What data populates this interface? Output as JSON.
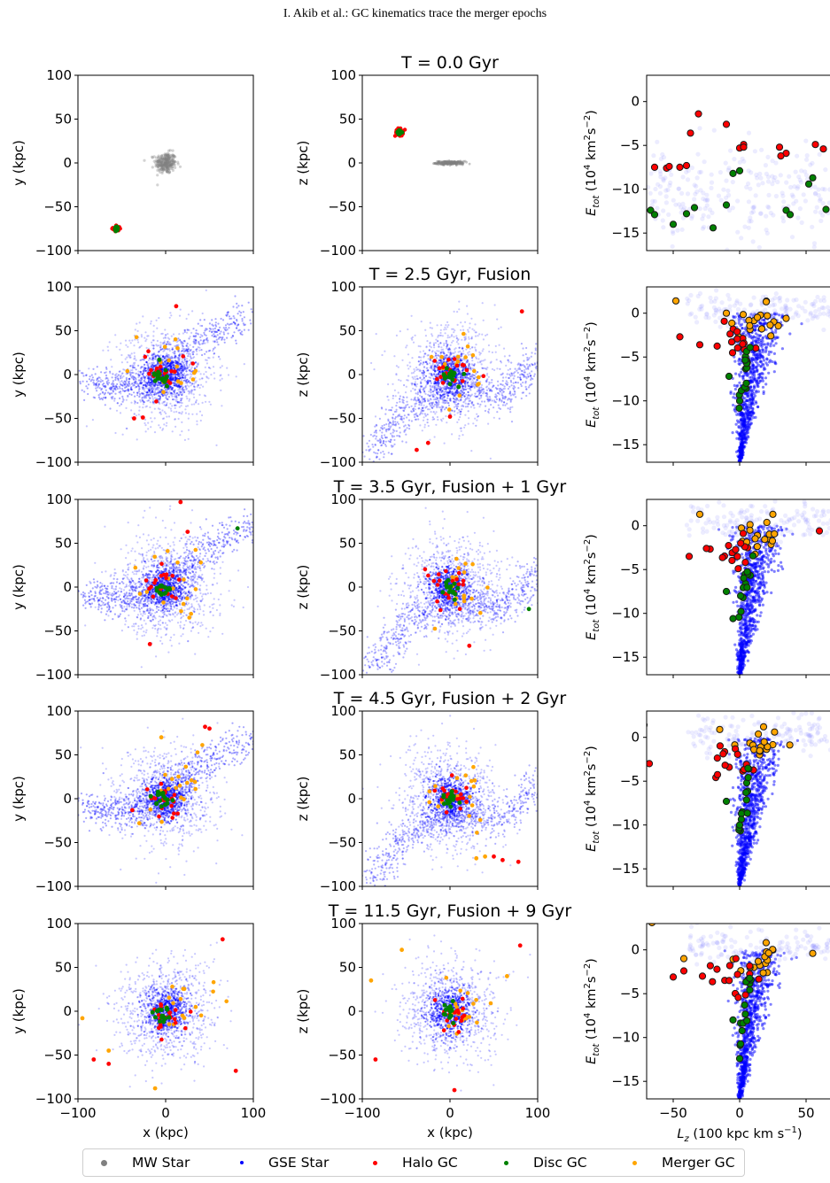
{
  "header": {
    "running_title": "I. Akib et al.: GC kinematics trace the merger epochs"
  },
  "figure": {
    "row_titles": [
      "T = 0.0 Gyr",
      "T = 2.5 Gyr, Fusion",
      "T = 3.5 Gyr, Fusion + 1 Gyr",
      "T = 4.5 Gyr, Fusion + 2 Gyr",
      "T = 11.5 Gyr, Fusion + 9 Gyr"
    ],
    "axis_labels": {
      "x_position": "x (kpc)",
      "y_position": "y (kpc)",
      "z_position": "z (kpc)",
      "energy_prefix": "E",
      "energy_sub": "tot",
      "energy_units_a": " (10",
      "energy_units_exp": "4",
      "energy_units_b": " km",
      "energy_units_exp2": "2",
      "energy_units_c": "s",
      "energy_units_exp3": "−2",
      "energy_units_d": ")",
      "lz_prefix": "L",
      "lz_sub": "z",
      "lz_units_a": " (100 kpc km s",
      "lz_units_exp": "−1",
      "lz_units_b": ")"
    },
    "pos_ticks": [
      "−100",
      "−50",
      "0",
      "50",
      "100"
    ],
    "pos_x_ticks": [
      "−100",
      "0",
      "100"
    ],
    "energy_ticks": [
      "0",
      "−5",
      "−10",
      "−15"
    ],
    "lz_ticks": [
      "−50",
      "0",
      "50"
    ],
    "legend": [
      {
        "label": "MW Star",
        "color": "#808080"
      },
      {
        "label": "GSE Star",
        "color": "#0000ff"
      },
      {
        "label": "Halo GC",
        "color": "#ff0000"
      },
      {
        "label": "Disc GC",
        "color": "#008000"
      },
      {
        "label": "Merger GC",
        "color": "#ffa500"
      }
    ]
  },
  "chart_data": [
    {
      "type": "scatter",
      "panel": "position (x, y)",
      "time_gyr": 0.0,
      "xlabel": "",
      "ylabel": "y (kpc)",
      "xlim": [
        -100,
        100
      ],
      "ylim": [
        -100,
        100
      ],
      "series": [
        {
          "name": "MW Star",
          "x": [
            0
          ],
          "y": [
            0
          ],
          "extent_kpc": 15
        },
        {
          "name": "Halo GC",
          "x": [
            -56
          ],
          "y": [
            -75
          ],
          "extent_kpc": 5
        },
        {
          "name": "Disc GC",
          "x": [
            -56
          ],
          "y": [
            -75
          ],
          "extent_kpc": 3
        }
      ]
    },
    {
      "type": "scatter",
      "panel": "position (x, z)",
      "time_gyr": 0.0,
      "title": "T = 0.0 Gyr",
      "xlabel": "",
      "ylabel": "z (kpc)",
      "xlim": [
        -100,
        100
      ],
      "ylim": [
        -100,
        100
      ],
      "series": [
        {
          "name": "MW Star",
          "x": [
            0
          ],
          "y": [
            0
          ],
          "extent_kpc": [
            18,
            3
          ]
        },
        {
          "name": "Halo GC",
          "x": [
            -58
          ],
          "y": [
            35
          ],
          "extent_kpc": 5
        },
        {
          "name": "Disc GC",
          "x": [
            -58
          ],
          "y": [
            35
          ],
          "extent_kpc": 3
        }
      ]
    },
    {
      "type": "scatter",
      "panel": "energy vs Lz",
      "time_gyr": 0.0,
      "ylabel": "Etot (10^4 km^2 s^-2)",
      "xlim": [
        -70,
        70
      ],
      "ylim": [
        -17,
        3
      ],
      "series": [
        {
          "name": "Halo GC",
          "x": [
            -64,
            -55,
            -53,
            -45,
            -40,
            -37,
            -31,
            -10,
            0,
            3,
            3,
            30,
            35,
            31,
            57,
            63
          ],
          "y": [
            -7.5,
            -7.6,
            -7.4,
            -7.5,
            -7.3,
            -3.6,
            -1.4,
            -2.6,
            -5.3,
            -4.9,
            -5.2,
            -5.2,
            -5.9,
            -6.2,
            -4.9,
            -5.4
          ]
        },
        {
          "name": "Disc GC",
          "x": [
            -67,
            -64,
            -50,
            -40,
            -20,
            -10,
            -5,
            0,
            35,
            38,
            52,
            55,
            65,
            -34
          ],
          "y": [
            -12.4,
            -12.9,
            -14.0,
            -12.8,
            -14.4,
            -11.8,
            -8.2,
            -7.9,
            -12.4,
            -12.9,
            -9.4,
            -8.7,
            -12.3,
            -12.1
          ]
        }
      ]
    },
    {
      "type": "scatter",
      "panel": "position (x, y)",
      "time_gyr": 2.5,
      "ylabel": "y (kpc)",
      "xlim": [
        -100,
        100
      ],
      "ylim": [
        -100,
        100
      ],
      "series": [
        {
          "name": "Halo GC",
          "x": [
            12,
            -36,
            -26,
            -10
          ],
          "y": [
            78,
            -50,
            -49,
            0
          ]
        },
        {
          "name": "Disc GC",
          "x": [
            -10,
            -5,
            0
          ],
          "y": [
            0,
            -5,
            5
          ]
        }
      ]
    },
    {
      "type": "scatter",
      "panel": "position (x, z)",
      "time_gyr": 2.5,
      "title": "T = 2.5 Gyr, Fusion",
      "ylabel": "z (kpc)",
      "xlim": [
        -100,
        100
      ],
      "ylim": [
        -100,
        100
      ],
      "series": [
        {
          "name": "Halo GC",
          "x": [
            -25,
            -38,
            82,
            0
          ],
          "y": [
            -78,
            -86,
            72,
            -48
          ]
        }
      ]
    },
    {
      "type": "scatter",
      "panel": "energy vs Lz",
      "time_gyr": 2.5,
      "ylabel": "Etot (10^4 km^2 s^-2)",
      "xlim": [
        -70,
        70
      ],
      "ylim": [
        -17,
        3
      ],
      "series": [
        {
          "name": "Halo GC",
          "x": [
            -45,
            -30
          ],
          "y": [
            -2.7,
            -3.6
          ]
        },
        {
          "name": "Merger GC",
          "x": [
            -48,
            -10,
            20,
            35
          ],
          "y": [
            1.4,
            0.0,
            1.3,
            -0.6
          ]
        },
        {
          "name": "Disc GC",
          "x": [
            0,
            5,
            -8
          ],
          "y": [
            -10.0,
            -8.0,
            -7.2
          ]
        }
      ]
    },
    {
      "type": "scatter",
      "panel": "position (x, y)",
      "time_gyr": 3.5,
      "ylabel": "y (kpc)",
      "xlim": [
        -100,
        100
      ],
      "ylim": [
        -100,
        100
      ],
      "series": [
        {
          "name": "Halo GC",
          "x": [
            17,
            25,
            -18
          ],
          "y": [
            97,
            63,
            -65
          ]
        },
        {
          "name": "Disc GC",
          "x": [
            82
          ],
          "y": [
            67
          ]
        }
      ]
    },
    {
      "type": "scatter",
      "panel": "position (x, z)",
      "time_gyr": 3.5,
      "title": "T = 3.5 Gyr, Fusion + 1 Gyr",
      "ylabel": "z (kpc)",
      "xlim": [
        -100,
        100
      ],
      "ylim": [
        -100,
        100
      ],
      "series": [
        {
          "name": "Halo GC",
          "x": [
            22
          ],
          "y": [
            -67
          ]
        },
        {
          "name": "Disc GC",
          "x": [
            90
          ],
          "y": [
            -25
          ]
        }
      ]
    },
    {
      "type": "scatter",
      "panel": "energy vs Lz",
      "time_gyr": 3.5,
      "ylabel": "Etot (10^4 km^2 s^-2)",
      "xlim": [
        -70,
        70
      ],
      "ylim": [
        -17,
        3
      ],
      "series": [
        {
          "name": "Halo GC",
          "x": [
            -38,
            -25,
            60
          ],
          "y": [
            -3.5,
            -2.6,
            -0.6
          ]
        },
        {
          "name": "Merger GC",
          "x": [
            -30,
            25
          ],
          "y": [
            1.3,
            1.3
          ]
        },
        {
          "name": "Disc GC",
          "x": [
            -5,
            -10
          ],
          "y": [
            -10.6,
            -7.5
          ]
        }
      ]
    },
    {
      "type": "scatter",
      "panel": "position (x, y)",
      "time_gyr": 4.5,
      "ylabel": "y (kpc)",
      "xlim": [
        -100,
        100
      ],
      "ylim": [
        -100,
        100
      ],
      "series": [
        {
          "name": "Halo GC",
          "x": [
            45,
            50,
            -38
          ],
          "y": [
            82,
            80,
            -13
          ]
        },
        {
          "name": "Merger GC",
          "x": [
            -5,
            -30
          ],
          "y": [
            70,
            -28
          ]
        }
      ]
    },
    {
      "type": "scatter",
      "panel": "position (x, z)",
      "time_gyr": 4.5,
      "title": "T = 4.5 Gyr, Fusion + 2 Gyr",
      "ylabel": "z (kpc)",
      "xlim": [
        -100,
        100
      ],
      "ylim": [
        -100,
        100
      ],
      "series": [
        {
          "name": "Halo GC",
          "x": [
            78,
            50,
            60
          ],
          "y": [
            -72,
            -66,
            -70
          ]
        },
        {
          "name": "Merger GC",
          "x": [
            30,
            40
          ],
          "y": [
            -68,
            -66
          ]
        }
      ]
    },
    {
      "type": "scatter",
      "panel": "energy vs Lz",
      "time_gyr": 4.5,
      "ylabel": "Etot (10^4 km^2 s^-2)",
      "xlim": [
        -70,
        70
      ],
      "ylim": [
        -17,
        3
      ],
      "series": [
        {
          "name": "Halo GC",
          "x": [
            -68
          ],
          "y": [
            -3.0
          ]
        },
        {
          "name": "Merger GC",
          "x": [
            -72,
            -15,
            18
          ],
          "y": [
            1.4,
            0.9,
            1.2
          ]
        },
        {
          "name": "Disc GC",
          "x": [
            -10,
            0
          ],
          "y": [
            -7.3,
            -10.0
          ]
        }
      ]
    },
    {
      "type": "scatter",
      "panel": "position (x, y)",
      "time_gyr": 11.5,
      "ylabel": "y (kpc)",
      "xlabel": "x (kpc)",
      "xlim": [
        -100,
        100
      ],
      "ylim": [
        -100,
        100
      ],
      "series": [
        {
          "name": "Halo GC",
          "x": [
            -82,
            -65,
            65,
            80
          ],
          "y": [
            -55,
            -60,
            82,
            -68
          ]
        },
        {
          "name": "Merger GC",
          "x": [
            -95,
            -12,
            -65
          ],
          "y": [
            -8,
            -88,
            -45
          ]
        }
      ]
    },
    {
      "type": "scatter",
      "panel": "position (x, z)",
      "time_gyr": 11.5,
      "title": "T = 11.5 Gyr, Fusion + 9 Gyr",
      "ylabel": "z (kpc)",
      "xlabel": "x (kpc)",
      "xlim": [
        -100,
        100
      ],
      "ylim": [
        -100,
        100
      ],
      "series": [
        {
          "name": "Halo GC",
          "x": [
            -85,
            80,
            5
          ],
          "y": [
            -55,
            75,
            -90
          ]
        },
        {
          "name": "Merger GC",
          "x": [
            -90,
            -55,
            65
          ],
          "y": [
            35,
            70,
            40
          ]
        }
      ]
    },
    {
      "type": "scatter",
      "panel": "energy vs Lz",
      "time_gyr": 11.5,
      "ylabel": "Etot (10^4 km^2 s^-2)",
      "xlabel": "Lz (100 kpc km s^-1)",
      "xlim": [
        -70,
        70
      ],
      "ylim": [
        -17,
        3
      ],
      "series": [
        {
          "name": "Halo GC",
          "x": [
            -50,
            -42,
            -28
          ],
          "y": [
            -3.1,
            -2.4,
            -3.0
          ]
        },
        {
          "name": "Merger GC",
          "x": [
            -66,
            -42,
            55
          ],
          "y": [
            3.1,
            -1.0,
            -0.4
          ]
        },
        {
          "name": "Disc GC",
          "x": [
            0,
            -5
          ],
          "y": [
            -12.4,
            -8.0
          ]
        }
      ]
    }
  ]
}
